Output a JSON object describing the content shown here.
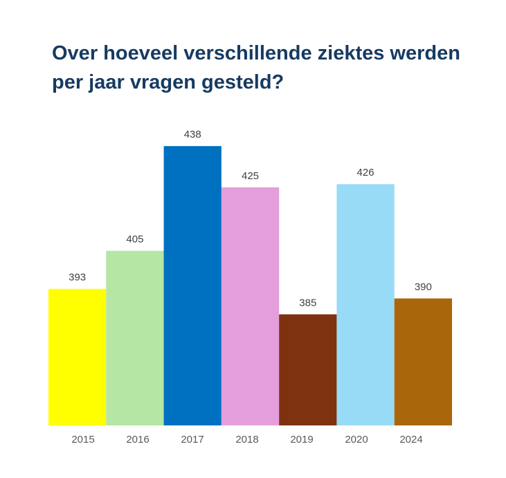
{
  "chart_data": {
    "type": "bar",
    "title": "Over hoeveel verschillende ziektes werden per jaar vragen gesteld?",
    "categories": [
      "2015",
      "2016",
      "2017",
      "2018",
      "2019",
      "2020",
      "2024"
    ],
    "values": [
      393,
      405,
      438,
      425,
      385,
      426,
      390
    ],
    "colors": [
      "#FFFF00",
      "#B5E6A4",
      "#0070C0",
      "#E49EDC",
      "#7F3210",
      "#98DBF6",
      "#AA660A"
    ],
    "xlabel": "",
    "ylabel": "",
    "ylim": [
      350,
      440
    ],
    "grid": false,
    "legend": "none",
    "data_labels": true
  }
}
